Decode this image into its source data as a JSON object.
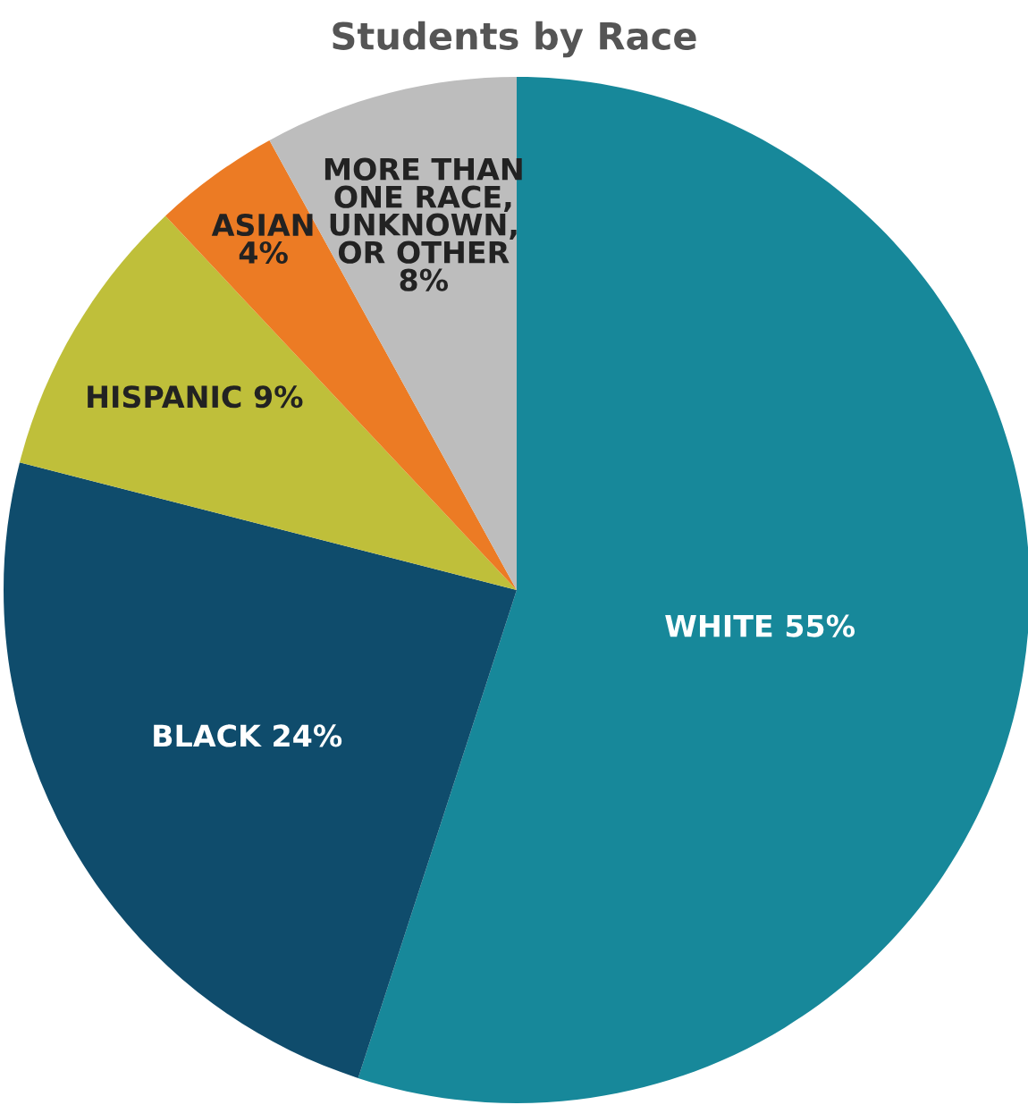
{
  "chart_data": {
    "type": "pie",
    "title": "Students by Race",
    "categories": [
      "WHITE",
      "BLACK",
      "HISPANIC",
      "ASIAN",
      "MORE THAN\nONE RACE,\nUNKNOWN,\nOR OTHER"
    ],
    "values": [
      55,
      24,
      9,
      4,
      8
    ],
    "value_labels": [
      "55%",
      "24%",
      "9%",
      "4%",
      "8%"
    ],
    "colors": [
      "#17889a",
      "#0f4c6c",
      "#bfbf3a",
      "#ec7b24",
      "#bdbdbd"
    ]
  }
}
